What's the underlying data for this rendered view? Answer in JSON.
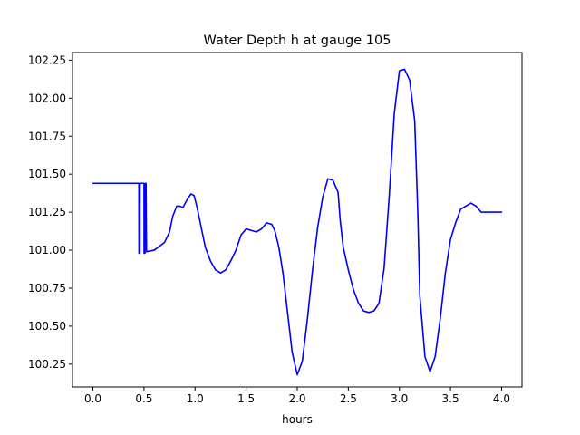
{
  "chart_data": {
    "type": "line",
    "title": "Water Depth h at gauge 105",
    "xlabel": "hours",
    "ylabel": "",
    "xlim": [
      -0.2,
      4.2
    ],
    "ylim": [
      100.1,
      102.3
    ],
    "xticks": [
      0.0,
      0.5,
      1.0,
      1.5,
      2.0,
      2.5,
      3.0,
      3.5,
      4.0
    ],
    "xtick_labels": [
      "0.0",
      "0.5",
      "1.0",
      "1.5",
      "2.0",
      "2.5",
      "3.0",
      "3.5",
      "4.0"
    ],
    "yticks": [
      100.25,
      100.5,
      100.75,
      101.0,
      101.25,
      101.5,
      101.75,
      102.0,
      102.25
    ],
    "ytick_labels": [
      "100.25",
      "100.50",
      "100.75",
      "101.00",
      "101.25",
      "101.50",
      "101.75",
      "102.00",
      "102.25"
    ],
    "grid": false,
    "series": [
      {
        "color": "#0000ff",
        "x": [
          0.0,
          0.1,
          0.2,
          0.3,
          0.4,
          0.45,
          0.451,
          0.46,
          0.461,
          0.475,
          0.48,
          0.5,
          0.501,
          0.51,
          0.511,
          0.52,
          0.525,
          0.6,
          0.7,
          0.75,
          0.78,
          0.82,
          0.85,
          0.88,
          0.92,
          0.96,
          0.99,
          1.02,
          1.06,
          1.1,
          1.15,
          1.2,
          1.25,
          1.3,
          1.35,
          1.4,
          1.45,
          1.5,
          1.55,
          1.6,
          1.65,
          1.7,
          1.75,
          1.78,
          1.82,
          1.86,
          1.9,
          1.95,
          2.0,
          2.05,
          2.1,
          2.15,
          2.2,
          2.25,
          2.3,
          2.35,
          2.4,
          2.42,
          2.45,
          2.5,
          2.55,
          2.6,
          2.65,
          2.7,
          2.75,
          2.8,
          2.85,
          2.9,
          2.95,
          3.0,
          3.05,
          3.1,
          3.15,
          3.18,
          3.2,
          3.25,
          3.3,
          3.35,
          3.4,
          3.45,
          3.5,
          3.55,
          3.6,
          3.65,
          3.7,
          3.75,
          3.8,
          3.85,
          3.9,
          3.93,
          3.96,
          4.0
        ],
        "y": [
          101.44,
          101.44,
          101.44,
          101.44,
          101.44,
          101.44,
          100.98,
          100.98,
          101.44,
          101.44,
          101.44,
          101.44,
          100.98,
          100.98,
          101.44,
          101.44,
          100.99,
          101.0,
          101.05,
          101.12,
          101.22,
          101.29,
          101.29,
          101.28,
          101.33,
          101.37,
          101.36,
          101.28,
          101.15,
          101.02,
          100.93,
          100.87,
          100.85,
          100.87,
          100.93,
          101.0,
          101.1,
          101.14,
          101.13,
          101.12,
          101.14,
          101.18,
          101.17,
          101.13,
          101.02,
          100.85,
          100.62,
          100.33,
          100.18,
          100.27,
          100.55,
          100.87,
          101.15,
          101.35,
          101.47,
          101.46,
          101.38,
          101.2,
          101.02,
          100.87,
          100.74,
          100.65,
          100.6,
          100.59,
          100.6,
          100.65,
          100.88,
          101.35,
          101.9,
          102.18,
          102.19,
          102.12,
          101.85,
          101.25,
          100.7,
          100.3,
          100.2,
          100.3,
          100.55,
          100.85,
          101.07,
          101.18,
          101.27,
          101.29,
          101.31,
          101.29,
          101.25,
          101.25,
          101.25,
          101.25,
          101.25,
          101.25
        ]
      }
    ]
  }
}
